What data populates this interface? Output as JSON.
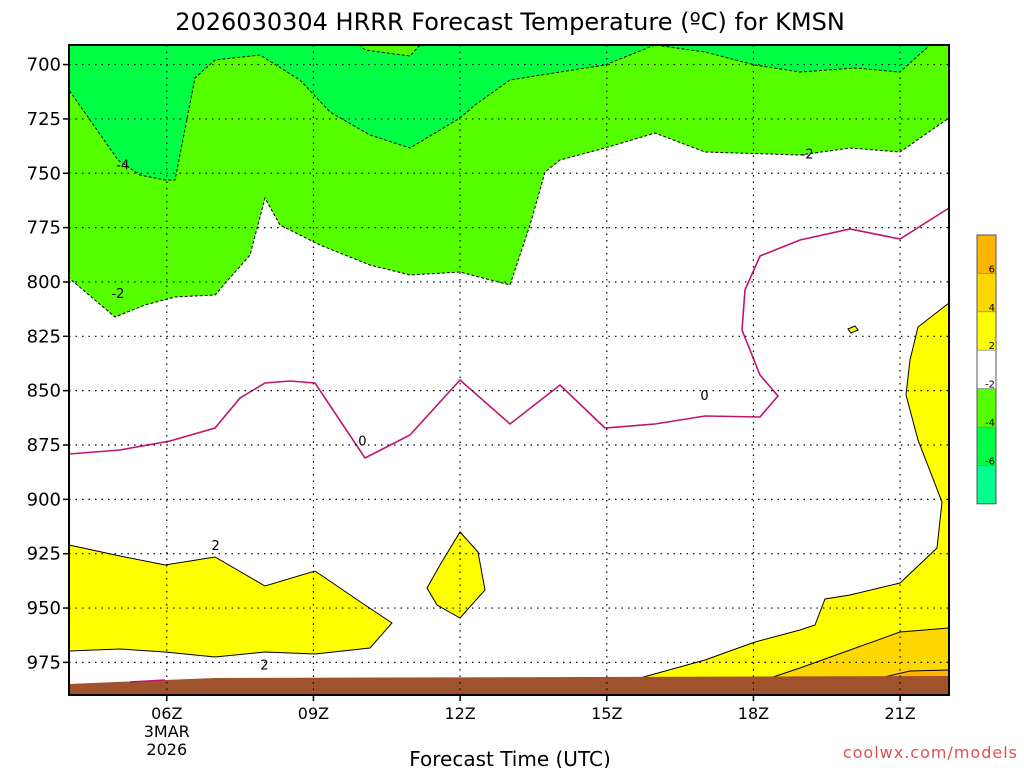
{
  "chart_data": {
    "type": "contour",
    "title": "2026030304 HRRR Forecast Temperature (ºC) for KMSN",
    "xlabel": "Forecast Time (UTC)",
    "ylabel": "",
    "x_ticks": [
      {
        "label": "06Z",
        "sub1": "3MAR",
        "sub2": "2026",
        "hour": 6
      },
      {
        "label": "09Z",
        "hour": 9
      },
      {
        "label": "12Z",
        "hour": 12
      },
      {
        "label": "15Z",
        "hour": 15
      },
      {
        "label": "18Z",
        "hour": 18
      },
      {
        "label": "21Z",
        "hour": 21
      }
    ],
    "x_range_hours": [
      4,
      22
    ],
    "y_ticks": [
      "700",
      "725",
      "750",
      "775",
      "800",
      "825",
      "850",
      "875",
      "900",
      "925",
      "950",
      "975"
    ],
    "y_range_hPa": [
      691,
      990
    ],
    "grid": true,
    "contour_labels": [
      {
        "text": "-4",
        "hour": 5.1,
        "p": 746
      },
      {
        "text": "-2",
        "hour": 5.0,
        "p": 805
      },
      {
        "text": "-2",
        "hour": 19.1,
        "p": 741
      },
      {
        "text": "0",
        "hour": 10.0,
        "p": 873
      },
      {
        "text": "0",
        "hour": 17.0,
        "p": 852
      },
      {
        "text": "2",
        "hour": 7.0,
        "p": 921
      },
      {
        "text": "2",
        "hour": 8.0,
        "p": 976
      }
    ],
    "legend": {
      "placement": "right",
      "labels": [
        "6",
        "4",
        "2",
        "-2",
        "-4",
        "-6"
      ],
      "colors": [
        "#ffb400",
        "#ffd700",
        "#ffff00",
        "#ffffff",
        "#55ff00",
        "#00ff45",
        "#00ff90"
      ]
    },
    "colors": {
      "cold_4": "#00ff45",
      "cold_2": "#55ff00",
      "warm_2": "#ffff00",
      "warm_4": "#ffd700",
      "ground": "#a0522d",
      "zero_line": "#c01470"
    }
  },
  "credit": "coolwx.com/models"
}
